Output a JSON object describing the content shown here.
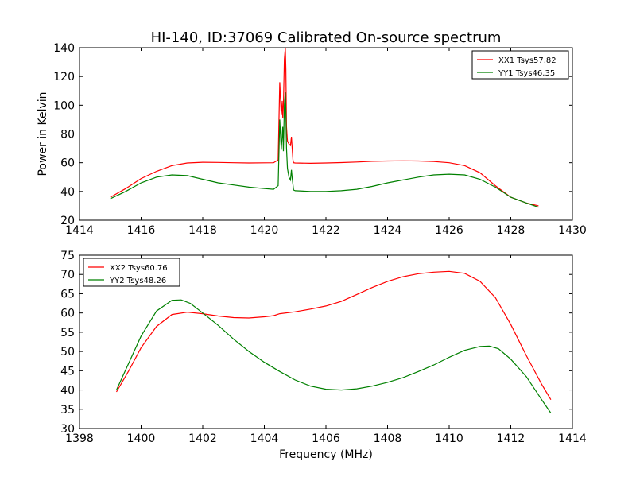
{
  "title": "HI-140, ID:37069 Calibrated On-source spectrum",
  "chart_data": [
    {
      "type": "line",
      "ylabel": "Power in Kelvin",
      "xlabel": "",
      "xlim": [
        1414,
        1430
      ],
      "ylim": [
        20,
        140
      ],
      "xticks": [
        "1414",
        "1416",
        "1418",
        "1420",
        "1422",
        "1424",
        "1426",
        "1428",
        "1430"
      ],
      "yticks": [
        "20",
        "40",
        "60",
        "80",
        "100",
        "120",
        "140"
      ],
      "legend": "top-right",
      "series": [
        {
          "name": "XX1 Tsys57.82",
          "color": "#ff0000",
          "x": [
            1415.0,
            1415.5,
            1416.0,
            1416.5,
            1417.0,
            1417.5,
            1418.0,
            1418.5,
            1419.0,
            1419.5,
            1420.0,
            1420.3,
            1420.45,
            1420.5,
            1420.55,
            1420.58,
            1420.6,
            1420.62,
            1420.65,
            1420.68,
            1420.7,
            1420.72,
            1420.75,
            1420.8,
            1420.85,
            1420.88,
            1420.9,
            1420.93,
            1420.95,
            1421.0,
            1421.5,
            1422.0,
            1422.5,
            1423.0,
            1423.5,
            1424.0,
            1424.5,
            1425.0,
            1425.5,
            1426.0,
            1426.5,
            1427.0,
            1427.5,
            1428.0,
            1428.5,
            1428.9
          ],
          "y": [
            36,
            42,
            49,
            54,
            58,
            59.8,
            60.3,
            60.2,
            60.0,
            59.8,
            59.9,
            60.0,
            62,
            116,
            93,
            103,
            91,
            100,
            132,
            140,
            125,
            85,
            75,
            73,
            72,
            78,
            71,
            62,
            60,
            59.8,
            59.6,
            59.8,
            60.1,
            60.5,
            61.0,
            61.2,
            61.3,
            61.2,
            60.8,
            60.0,
            58.0,
            53.0,
            44.0,
            36.0,
            32.0,
            30.0
          ]
        },
        {
          "name": "YY1 Tsys46.35",
          "color": "#008000",
          "x": [
            1415.0,
            1415.5,
            1416.0,
            1416.5,
            1417.0,
            1417.5,
            1418.0,
            1418.5,
            1419.0,
            1419.5,
            1420.0,
            1420.3,
            1420.45,
            1420.5,
            1420.55,
            1420.6,
            1420.62,
            1420.65,
            1420.68,
            1420.7,
            1420.72,
            1420.75,
            1420.8,
            1420.85,
            1420.88,
            1420.9,
            1420.95,
            1421.0,
            1421.5,
            1422.0,
            1422.5,
            1423.0,
            1423.5,
            1424.0,
            1424.5,
            1425.0,
            1425.5,
            1426.0,
            1426.5,
            1427.0,
            1427.5,
            1428.0,
            1428.5,
            1428.9
          ],
          "y": [
            35,
            40,
            46,
            50,
            51.5,
            51,
            48.5,
            46,
            44.5,
            43,
            42,
            41.5,
            44,
            90,
            69,
            85,
            68,
            100,
            109,
            95,
            70,
            56,
            50,
            48,
            55,
            50,
            41,
            40.5,
            40,
            40,
            40.5,
            41.5,
            43.5,
            46,
            48,
            50,
            51.5,
            52,
            51.5,
            48.5,
            43,
            36,
            32,
            29
          ]
        }
      ]
    },
    {
      "type": "line",
      "xlabel": "Frequency (MHz)",
      "ylabel": "",
      "xlim": [
        1398,
        1414
      ],
      "ylim": [
        30,
        75
      ],
      "xticks": [
        "1398",
        "1400",
        "1402",
        "1404",
        "1406",
        "1408",
        "1410",
        "1412",
        "1414"
      ],
      "yticks": [
        "30",
        "35",
        "40",
        "45",
        "50",
        "55",
        "60",
        "65",
        "70",
        "75"
      ],
      "legend": "top-left",
      "series": [
        {
          "name": "XX2 Tsys60.76",
          "color": "#ff0000",
          "x": [
            1399.2,
            1399.6,
            1400.0,
            1400.5,
            1401.0,
            1401.5,
            1402.0,
            1402.5,
            1403.0,
            1403.5,
            1404.0,
            1404.3,
            1404.5,
            1405.0,
            1405.5,
            1406.0,
            1406.5,
            1407.0,
            1407.5,
            1408.0,
            1408.5,
            1409.0,
            1409.5,
            1410.0,
            1410.5,
            1411.0,
            1411.5,
            1412.0,
            1412.5,
            1413.0,
            1413.3
          ],
          "y": [
            39.5,
            45,
            51,
            56.5,
            59.6,
            60.2,
            59.8,
            59.2,
            58.8,
            58.7,
            59.0,
            59.3,
            59.8,
            60.3,
            61.0,
            61.8,
            63.0,
            64.8,
            66.6,
            68.2,
            69.4,
            70.2,
            70.6,
            70.8,
            70.3,
            68.2,
            64.0,
            57.0,
            49.0,
            41.5,
            37.5
          ]
        },
        {
          "name": "YY2 Tsys48.26",
          "color": "#008000",
          "x": [
            1399.2,
            1399.6,
            1400.0,
            1400.5,
            1401.0,
            1401.3,
            1401.6,
            1402.0,
            1402.5,
            1403.0,
            1403.5,
            1404.0,
            1404.5,
            1405.0,
            1405.5,
            1406.0,
            1406.5,
            1407.0,
            1407.5,
            1408.0,
            1408.5,
            1409.0,
            1409.5,
            1410.0,
            1410.5,
            1411.0,
            1411.3,
            1411.6,
            1412.0,
            1412.5,
            1413.0,
            1413.3
          ],
          "y": [
            40,
            47,
            54,
            60.5,
            63.3,
            63.4,
            62.5,
            60,
            56.8,
            53.2,
            50.0,
            47.2,
            44.8,
            42.6,
            41.0,
            40.2,
            40.0,
            40.3,
            41.0,
            42.0,
            43.2,
            44.8,
            46.5,
            48.5,
            50.3,
            51.3,
            51.4,
            50.7,
            48.0,
            43.5,
            37.5,
            34.0
          ]
        }
      ]
    }
  ]
}
